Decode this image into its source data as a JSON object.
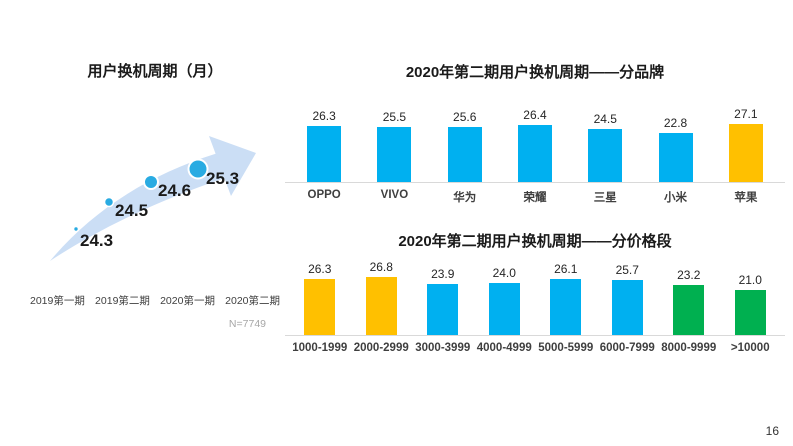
{
  "page": {
    "number": "16"
  },
  "chart_data": [
    {
      "type": "scatter",
      "title": "用户换机周期（月）",
      "categories": [
        "2019第一期",
        "2019第二期",
        "2020第一期",
        "2020第二期"
      ],
      "values": [
        24.3,
        24.5,
        24.6,
        25.3
      ],
      "note": "N=7749",
      "style": "bubbles of increasing size along a light-blue upward swoosh arrow",
      "point_color": "#29ABE2",
      "arrow_color": "#CBDEF5",
      "grid": false,
      "legend": "none"
    },
    {
      "type": "bar",
      "title": "2020年第二期用户换机周期——分品牌",
      "categories": [
        "OPPO",
        "VIVO",
        "华为",
        "荣耀",
        "三星",
        "小米",
        "苹果"
      ],
      "values": [
        26.3,
        25.5,
        25.6,
        26.4,
        24.5,
        22.8,
        27.1
      ],
      "colors": [
        "#00B0F0",
        "#00B0F0",
        "#00B0F0",
        "#00B0F0",
        "#00B0F0",
        "#00B0F0",
        "#FFC000"
      ],
      "ylim": [
        0,
        28
      ],
      "data_labels": true,
      "grid": false,
      "legend": "none",
      "xlabel": "",
      "ylabel": ""
    },
    {
      "type": "bar",
      "title": "2020年第二期用户换机周期——分价格段",
      "categories": [
        "1000-1999",
        "2000-2999",
        "3000-3999",
        "4000-4999",
        "5000-5999",
        "6000-7999",
        "8000-9999",
        ">10000"
      ],
      "values": [
        26.3,
        26.8,
        23.9,
        24.0,
        26.1,
        25.7,
        23.2,
        21.0
      ],
      "colors": [
        "#FFC000",
        "#FFC000",
        "#00B0F0",
        "#00B0F0",
        "#00B0F0",
        "#00B0F0",
        "#00B050",
        "#00B050"
      ],
      "ylim": [
        0,
        28
      ],
      "data_labels": true,
      "grid": false,
      "legend": "none",
      "xlabel": "",
      "ylabel": ""
    }
  ]
}
